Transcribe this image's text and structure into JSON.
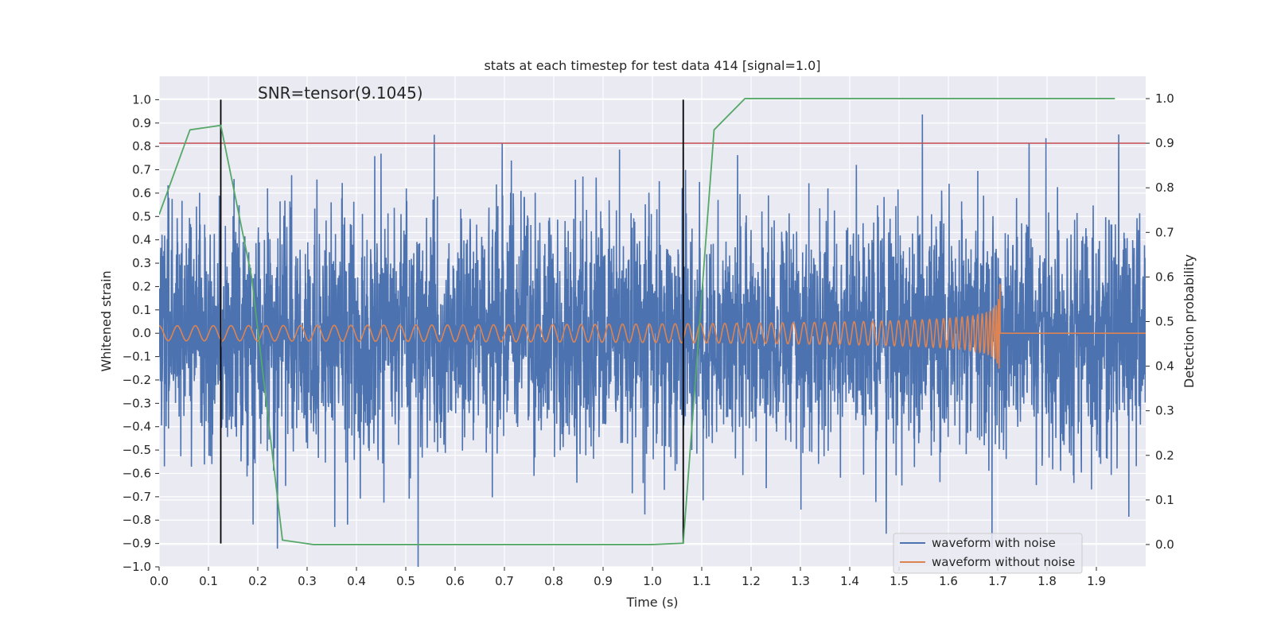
{
  "chart_data": {
    "type": "line",
    "title": "stats at each timestep for test data 414 [signal=1.0]",
    "annotation": "SNR=tensor(9.1045)",
    "xlabel": "Time (s)",
    "ylabel": "Whitened strain",
    "ylabel_right": "Detection probability",
    "xlim": [
      0.0,
      2.0
    ],
    "ylim": [
      -1.0,
      1.1
    ],
    "ylim_right": [
      -0.05,
      1.05
    ],
    "x_ticks": [
      "0.0",
      "0.1",
      "0.2",
      "0.3",
      "0.4",
      "0.5",
      "0.6",
      "0.7",
      "0.8",
      "0.9",
      "1.0",
      "1.1",
      "1.2",
      "1.3",
      "1.4",
      "1.5",
      "1.6",
      "1.7",
      "1.8",
      "1.9"
    ],
    "y_ticks": [
      "−1.0",
      "−0.9",
      "−0.8",
      "−0.7",
      "−0.6",
      "−0.5",
      "−0.4",
      "−0.3",
      "−0.2",
      "−0.1",
      "0.0",
      "0.1",
      "0.2",
      "0.3",
      "0.4",
      "0.5",
      "0.6",
      "0.7",
      "0.8",
      "0.9",
      "1.0"
    ],
    "y_ticks_right": [
      "0.0",
      "0.1",
      "0.2",
      "0.3",
      "0.4",
      "0.5",
      "0.6",
      "0.7",
      "0.8",
      "0.9",
      "1.0"
    ],
    "grid": true,
    "legend_position": "lower-right",
    "series": [
      {
        "name": "waveform with noise",
        "color": "#4c72b0",
        "axis": "left",
        "note_noise_std": 0.25,
        "x_range": [
          0.0,
          2.0
        ]
      },
      {
        "name": "waveform without noise",
        "color": "#dd8452",
        "axis": "left",
        "chirp_end_time": 1.705,
        "x_range": [
          0.0,
          2.0
        ]
      },
      {
        "name": "",
        "color": "#55a868",
        "axis": "right",
        "x": [
          0.0,
          0.0625,
          0.125,
          0.1875,
          0.25,
          0.3125,
          0.375,
          1.0,
          1.0625,
          1.125,
          1.1875,
          1.25,
          1.9375
        ],
        "y": [
          0.74,
          0.93,
          0.94,
          0.6,
          0.01,
          0.0,
          0.0,
          0.0,
          0.003,
          0.93,
          1.0,
          1.0,
          1.0
        ]
      }
    ],
    "threshold_line": {
      "axis": "right",
      "value": 0.9,
      "color": "#c44e52"
    },
    "vertical_lines": {
      "x": [
        0.125,
        1.0625
      ],
      "y_range": [
        -0.9,
        1.0
      ],
      "color": "#000000"
    }
  }
}
